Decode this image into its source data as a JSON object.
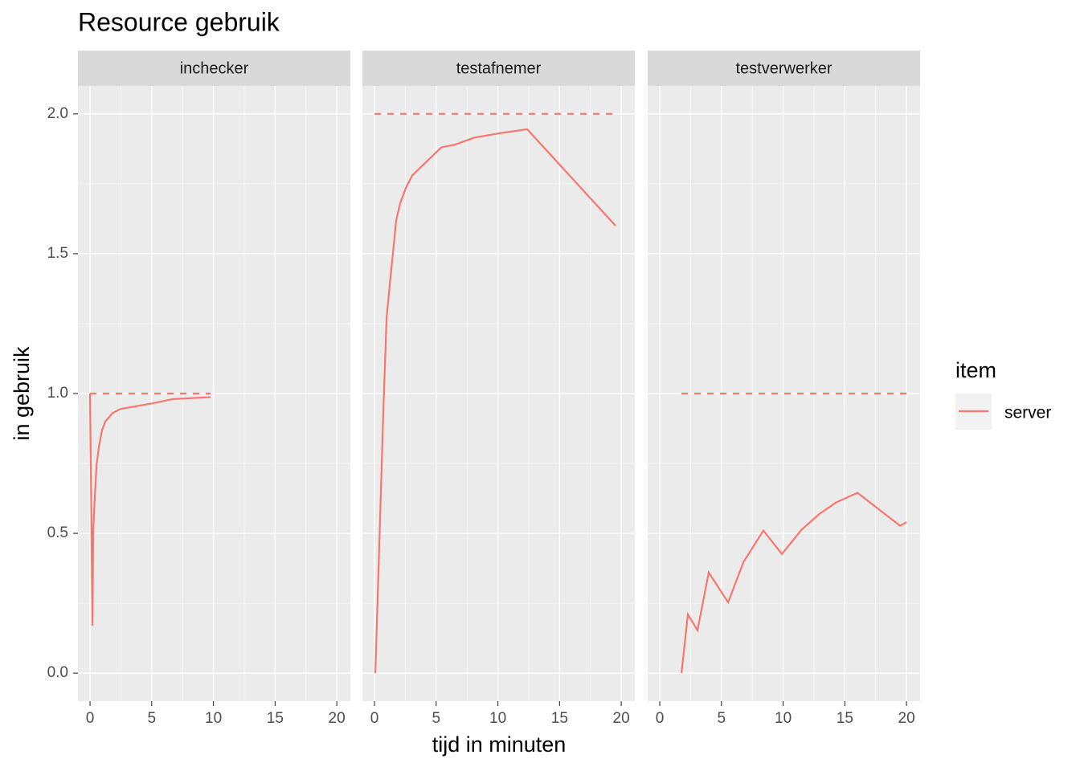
{
  "chart_data": {
    "type": "line",
    "title": "Resource gebruik",
    "x_label": "tijd in minuten",
    "y_label": "in gebruik",
    "legend_title": "item",
    "xlim": [
      -0.98,
      21.1
    ],
    "ylim": [
      -0.1,
      2.1
    ],
    "xticks": [
      0,
      5,
      10,
      15,
      20
    ],
    "yticks": [
      {
        "value": 0,
        "label": "0.0"
      },
      0.5,
      {
        "value": 1,
        "label": "1.0"
      },
      1.5,
      {
        "value": 2,
        "label": "2.0"
      }
    ],
    "grid": true,
    "facets": [
      {
        "label": "inchecker",
        "series": [
          {
            "name": "server",
            "color": "#f8766d",
            "x": [
              0,
              0.2,
              0.26,
              0.39,
              0.52,
              0.72,
              0.98,
              1.24,
              1.82,
              2.48,
              5.08,
              6.7,
              9.77
            ],
            "values": [
              1.0,
              0.17,
              0.51,
              0.63,
              0.74,
              0.81,
              0.87,
              0.9,
              0.93,
              0.945,
              0.965,
              0.98,
              0.987
            ]
          },
          {
            "color": "#f8766d",
            "linetype": "dashed",
            "x": [
              0,
              9.77
            ],
            "values": [
              1,
              1
            ]
          }
        ]
      },
      {
        "label": "testafnemer",
        "series": [
          {
            "name": "server",
            "color": "#f8766d",
            "x": [
              0.07,
              0.72,
              0.98,
              1.24,
              1.76,
              2.08,
              2.54,
              3.06,
              5.41,
              6.51,
              8.08,
              10.03,
              12.38,
              19.54
            ],
            "values": [
              0,
              0.94,
              1.27,
              1.39,
              1.62,
              1.68,
              1.735,
              1.78,
              1.88,
              1.89,
              1.915,
              1.93,
              1.945,
              1.6
            ]
          },
          {
            "color": "#f8766d",
            "linetype": "dashed",
            "x": [
              0,
              19.54
            ],
            "values": [
              2,
              2
            ]
          }
        ]
      },
      {
        "label": "testverwerker",
        "series": [
          {
            "name": "server",
            "color": "#f8766d",
            "x": [
              1.76,
              2.28,
              3.06,
              3.97,
              5.54,
              6.78,
              8.4,
              9.9,
              11.47,
              12.96,
              14.27,
              16.03,
              19.48,
              20
            ],
            "values": [
              0,
              0.21,
              0.153,
              0.36,
              0.253,
              0.397,
              0.51,
              0.426,
              0.512,
              0.57,
              0.61,
              0.645,
              0.527,
              0.54
            ]
          },
          {
            "color": "#f8766d",
            "linetype": "dashed",
            "x": [
              1.76,
              20
            ],
            "values": [
              1,
              1
            ]
          }
        ]
      }
    ]
  }
}
